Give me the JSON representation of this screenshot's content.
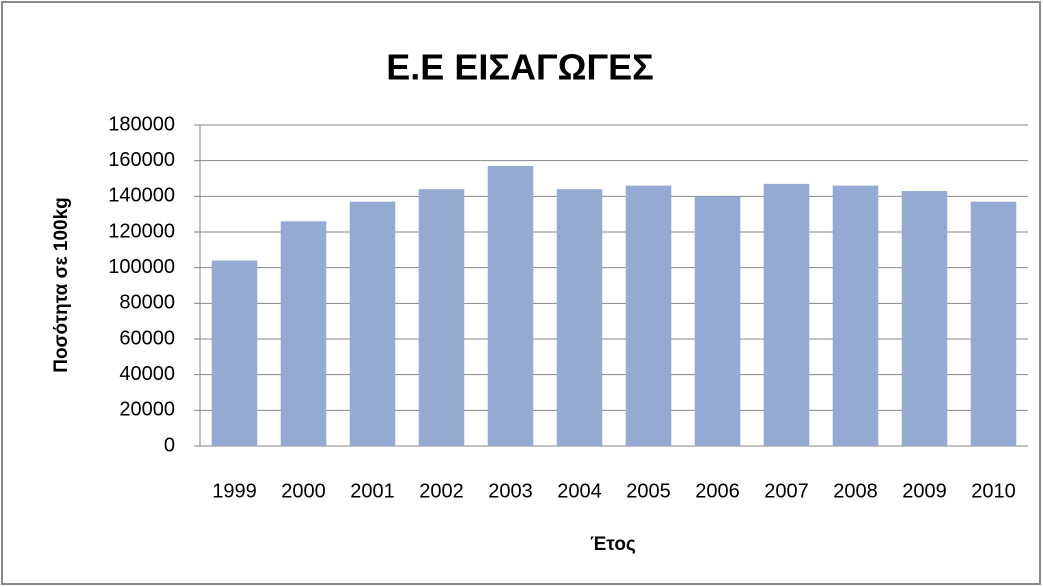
{
  "chart_data": {
    "type": "bar",
    "title": "Ε.Ε ΕΙΣΑΓΩΓΕΣ",
    "x_label": "Έτος",
    "y_label": "Ποσότητα σε 100kg",
    "categories": [
      "1999",
      "2000",
      "2001",
      "2002",
      "2003",
      "2004",
      "2005",
      "2006",
      "2007",
      "2008",
      "2009",
      "2010"
    ],
    "values": [
      104000,
      126000,
      137000,
      144000,
      157000,
      144000,
      146000,
      140000,
      147000,
      146000,
      143000,
      137000
    ],
    "color": "#94aad2",
    "ylim": [
      0,
      180000
    ],
    "yticks": [
      0,
      20000,
      40000,
      60000,
      80000,
      100000,
      120000,
      140000,
      160000,
      180000
    ],
    "grid": true
  }
}
